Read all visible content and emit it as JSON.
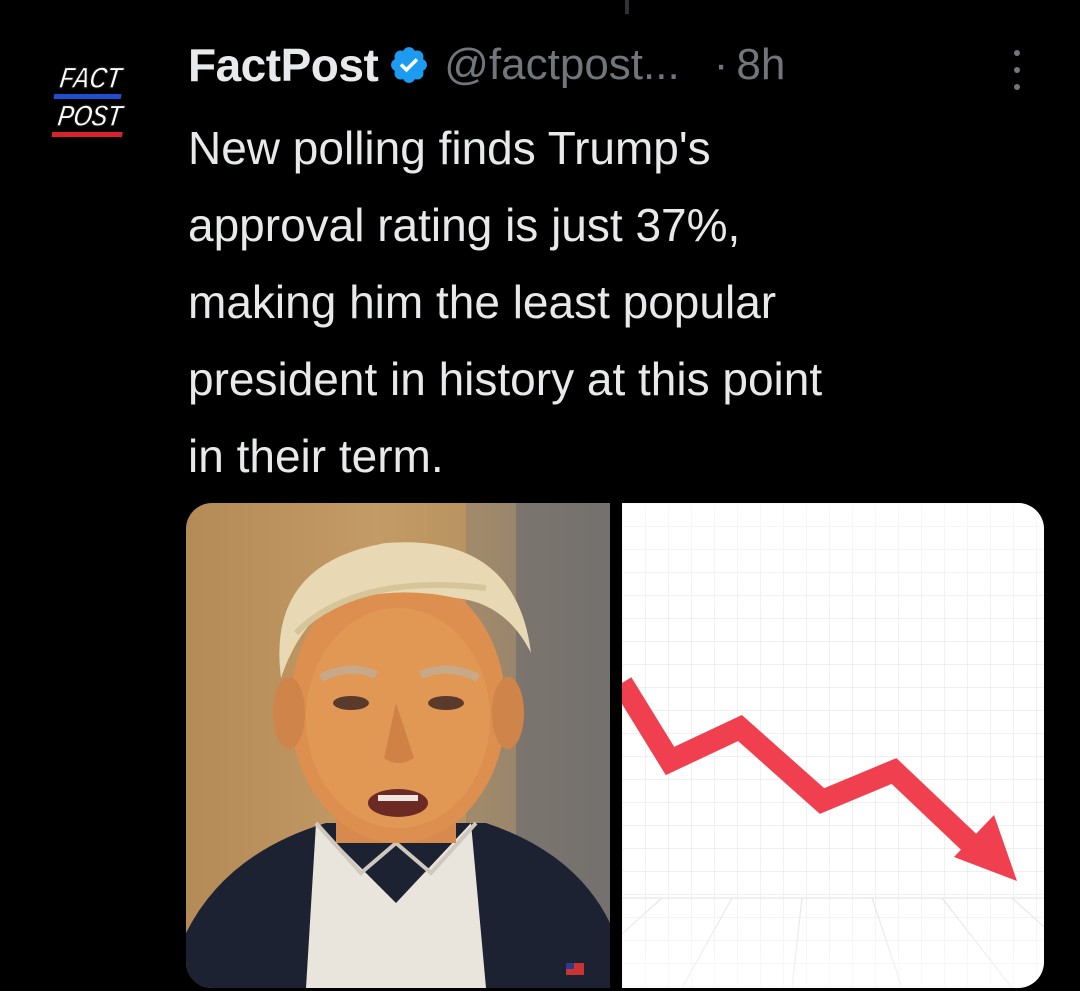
{
  "avatar": {
    "line1": "FACT",
    "line2": "POST"
  },
  "header": {
    "name": "FactPost",
    "handle": "@factpost...",
    "separator": "·",
    "time": "8h"
  },
  "tweet": {
    "lines": [
      "New polling finds Trump's",
      "approval rating is just 37%,",
      "making him the least popular",
      "president in history at this point",
      "in their term."
    ]
  },
  "media": {
    "photo_subject": "portrait photo of a man in a dark suit and white shirt",
    "chart_icon": "downward-trend-arrow-icon"
  },
  "colors": {
    "background": "#000000",
    "text": "#e7e9ea",
    "secondary": "#71767b",
    "verified": "#1d9bf0",
    "trend_arrow": "#f0404f"
  }
}
